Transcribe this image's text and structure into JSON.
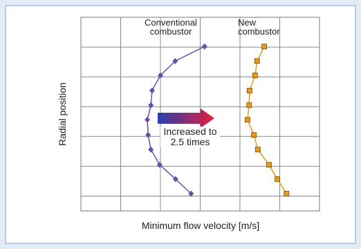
{
  "chart_data": {
    "type": "line",
    "xlabel": "Minimum flow velocity [m/s]",
    "ylabel": "Radial position",
    "xlim": [
      0,
      6
    ],
    "ylim": [
      0,
      6.5
    ],
    "xticks": [
      1,
      2,
      3,
      4,
      5
    ],
    "yticks": [
      0.5,
      1.5,
      2.5,
      3.5,
      4.5,
      5.5
    ],
    "grid": true,
    "annotation": "Increased to 2.5 times",
    "series": [
      {
        "name": "Conventional combustor",
        "color": "#6a4fa8",
        "marker": "diamond",
        "x": [
          3.11,
          2.37,
          2.0,
          1.79,
          1.76,
          1.67,
          1.69,
          1.76,
          1.98,
          2.38,
          2.77
        ],
        "values": [
          5.52,
          5.03,
          4.55,
          4.04,
          3.55,
          3.06,
          2.55,
          2.06,
          1.55,
          1.07,
          0.58
        ]
      },
      {
        "name": "New combustor",
        "color": "#e69a1c",
        "marker": "square",
        "x": [
          4.61,
          4.43,
          4.38,
          4.24,
          4.23,
          4.19,
          4.35,
          4.45,
          4.73,
          4.94,
          5.17
        ],
        "values": [
          5.52,
          5.03,
          4.55,
          4.04,
          3.55,
          3.06,
          2.55,
          2.06,
          1.55,
          1.07,
          0.58
        ]
      }
    ]
  }
}
